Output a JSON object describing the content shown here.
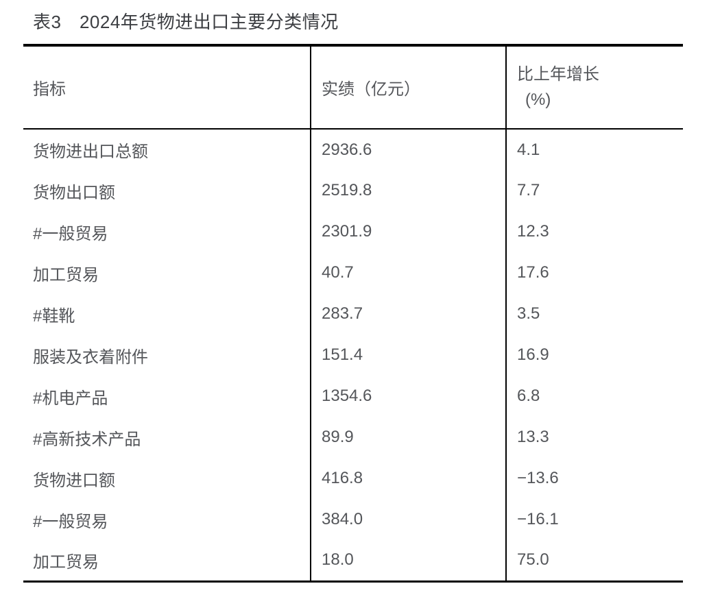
{
  "table": {
    "title": "表3　2024年货物进出口主要分类情况",
    "columns": [
      {
        "label": "指标"
      },
      {
        "label": "实绩（亿元）"
      },
      {
        "line1": "比上年增长",
        "line2": "(%)"
      }
    ],
    "rows": [
      {
        "indicator": "货物进出口总额",
        "value": "2936.6",
        "growth": "4.1"
      },
      {
        "indicator": "货物出口额",
        "value": "2519.8",
        "growth": "7.7"
      },
      {
        "indicator": "#一般贸易",
        "value": "2301.9",
        "growth": "12.3"
      },
      {
        "indicator": "加工贸易",
        "value": "40.7",
        "growth": "17.6"
      },
      {
        "indicator": "#鞋靴",
        "value": "283.7",
        "growth": "3.5"
      },
      {
        "indicator": "服装及衣着附件",
        "value": "151.4",
        "growth": "16.9"
      },
      {
        "indicator": "#机电产品",
        "value": "1354.6",
        "growth": "6.8"
      },
      {
        "indicator": "#高新技术产品",
        "value": "89.9",
        "growth": "13.3"
      },
      {
        "indicator": "货物进口额",
        "value": "416.8",
        "growth": "−13.6"
      },
      {
        "indicator": "#一般贸易",
        "value": "384.0",
        "growth": "−16.1"
      },
      {
        "indicator": "加工贸易",
        "value": "18.0",
        "growth": "75.0"
      }
    ],
    "colors": {
      "border": "#000000",
      "text": "#54565a",
      "title_text": "#3c3e42",
      "background": "#ffffff"
    }
  }
}
